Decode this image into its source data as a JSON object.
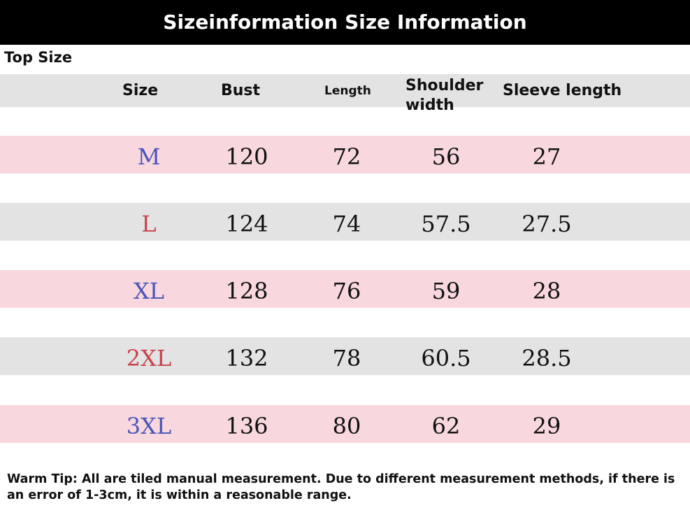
{
  "banner": {
    "title": "Sizeinformation Size Information"
  },
  "section": {
    "title": "Top Size"
  },
  "table": {
    "headers": {
      "size": "Size",
      "bust": "Bust",
      "length": "Length",
      "shoulder_line1": "Shoulder",
      "shoulder_line2": "width",
      "sleeve": "Sleeve length"
    },
    "rows": [
      {
        "size": "M",
        "bust": "120",
        "length": "72",
        "shoulder": "56",
        "sleeve": "27"
      },
      {
        "size": "L",
        "bust": "124",
        "length": "74",
        "shoulder": "57.5",
        "sleeve": "27.5"
      },
      {
        "size": "XL",
        "bust": "128",
        "length": "76",
        "shoulder": "59",
        "sleeve": "28"
      },
      {
        "size": "2XL",
        "bust": "132",
        "length": "78",
        "shoulder": "60.5",
        "sleeve": "28.5"
      },
      {
        "size": "3XL",
        "bust": "136",
        "length": "80",
        "shoulder": "62",
        "sleeve": "29"
      }
    ]
  },
  "colors": {
    "row_pink": "#f8d8de",
    "row_gray": "#e3e3e3",
    "size_blue": "#4a55b8",
    "size_red": "#c9424a"
  },
  "note": "Warm Tip: All are tiled manual measurement. Due to different measurement methods, if there is an error of 1-3cm, it is within a reasonable range."
}
